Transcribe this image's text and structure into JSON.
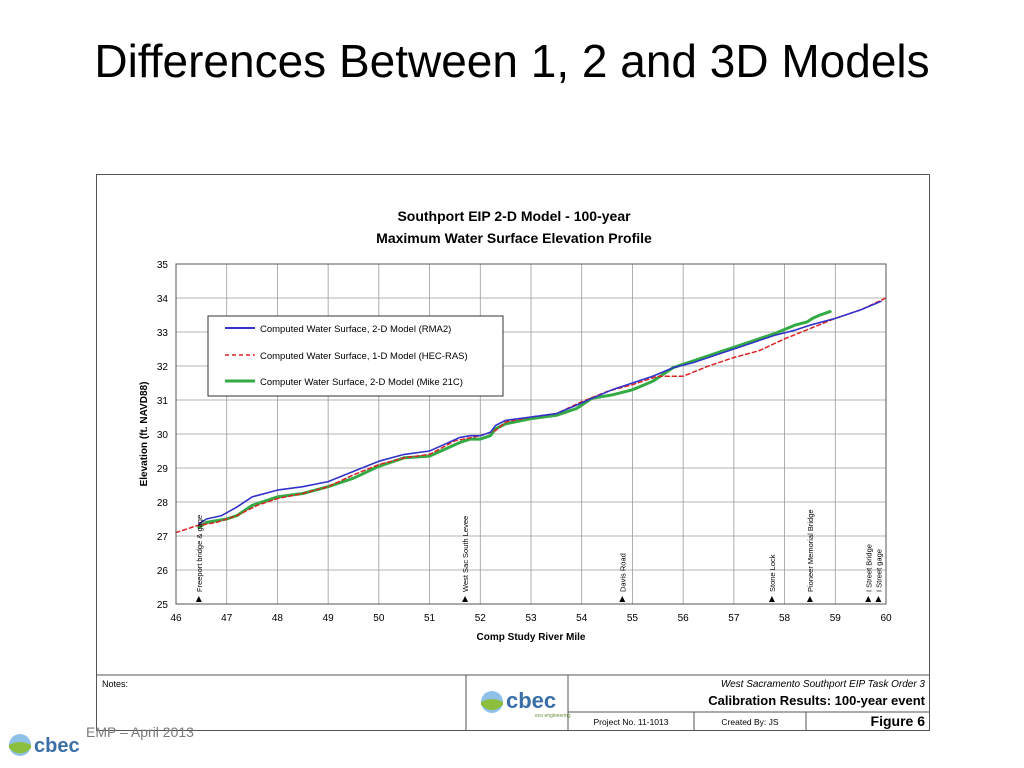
{
  "slide": {
    "title": "Differences Between 1, 2 and 3D Models",
    "footer_text": "EMP – April 2013",
    "logo_text": "cbec"
  },
  "chart_data": {
    "type": "line",
    "title": "Southport EIP 2-D Model - 100-year",
    "subtitle": "Maximum Water Surface Elevation Profile",
    "xlabel": "Comp Study River Mile",
    "ylabel": "Elevation (ft. NAVD88)",
    "xlim": [
      46,
      60
    ],
    "ylim": [
      25,
      35
    ],
    "xticks": [
      46,
      47,
      48,
      49,
      50,
      51,
      52,
      53,
      54,
      55,
      56,
      57,
      58,
      59,
      60
    ],
    "yticks": [
      25,
      26,
      27,
      28,
      29,
      30,
      31,
      32,
      33,
      34,
      35
    ],
    "grid": true,
    "legend_placement": "upper-left",
    "series": [
      {
        "name": "Computed Water Surface, 2-D Model (RMA2)",
        "color": "#3333cc",
        "style": "solid",
        "x": [
          46.45,
          46.6,
          46.9,
          47.2,
          47.5,
          48.0,
          48.5,
          49.0,
          49.5,
          50.0,
          50.5,
          51.0,
          51.3,
          51.6,
          51.8,
          52.0,
          52.2,
          52.3,
          52.5,
          53.0,
          53.5,
          53.9,
          54.2,
          54.6,
          55.0,
          55.4,
          55.8,
          56.2,
          56.6,
          57.0,
          57.4,
          57.8,
          58.2,
          58.5,
          59.0,
          59.5,
          59.9
        ],
        "y": [
          27.35,
          27.5,
          27.6,
          27.85,
          28.15,
          28.35,
          28.45,
          28.6,
          28.9,
          29.2,
          29.4,
          29.5,
          29.7,
          29.9,
          29.95,
          29.95,
          30.05,
          30.25,
          30.4,
          30.5,
          30.6,
          30.85,
          31.05,
          31.3,
          31.5,
          31.7,
          31.95,
          32.1,
          32.3,
          32.5,
          32.7,
          32.9,
          33.05,
          33.2,
          33.4,
          33.65,
          33.9
        ]
      },
      {
        "name": "Computed Water Surface, 1-D Model (HEC-RAS)",
        "color": "#dd2222",
        "style": "dashed",
        "x": [
          46.0,
          46.4,
          46.8,
          47.2,
          47.6,
          48.0,
          48.5,
          49.0,
          49.5,
          50.0,
          50.5,
          51.0,
          51.5,
          52.0,
          52.3,
          52.5,
          53.0,
          53.5,
          54.0,
          54.5,
          55.0,
          55.5,
          56.0,
          56.5,
          57.0,
          57.5,
          58.0,
          58.5,
          59.0,
          59.5,
          60.0
        ],
        "y": [
          27.1,
          27.3,
          27.4,
          27.6,
          27.9,
          28.1,
          28.25,
          28.45,
          28.8,
          29.1,
          29.3,
          29.4,
          29.8,
          29.95,
          30.1,
          30.35,
          30.5,
          30.6,
          30.95,
          31.25,
          31.45,
          31.7,
          31.7,
          32.0,
          32.25,
          32.45,
          32.8,
          33.1,
          33.4,
          33.65,
          34.0
        ]
      },
      {
        "name": "Computer Water Surface, 2-D Model (Mike 21C)",
        "color": "#33aa44",
        "style": "solid",
        "x": [
          46.45,
          46.6,
          47.0,
          47.2,
          47.5,
          48.0,
          48.5,
          49.0,
          49.5,
          50.0,
          50.5,
          51.0,
          51.3,
          51.6,
          51.8,
          52.0,
          52.2,
          52.3,
          52.5,
          53.0,
          53.5,
          53.9,
          54.2,
          54.6,
          55.0,
          55.4,
          55.8,
          56.2,
          56.6,
          57.0,
          57.4,
          57.8,
          58.2,
          58.45,
          58.55,
          58.7,
          58.9
        ],
        "y": [
          27.25,
          27.4,
          27.5,
          27.6,
          27.9,
          28.15,
          28.25,
          28.45,
          28.7,
          29.05,
          29.3,
          29.35,
          29.55,
          29.75,
          29.85,
          29.85,
          29.95,
          30.15,
          30.3,
          30.45,
          30.55,
          30.75,
          31.05,
          31.15,
          31.3,
          31.55,
          31.95,
          32.15,
          32.35,
          32.55,
          32.75,
          32.95,
          33.2,
          33.3,
          33.4,
          33.5,
          33.6
        ]
      }
    ],
    "markers": [
      {
        "x": 46.45,
        "label": "Freeport bridge & gage"
      },
      {
        "x": 51.7,
        "label": "West Sac South Levee"
      },
      {
        "x": 54.8,
        "label": "Davis Road"
      },
      {
        "x": 57.75,
        "label": "Stone Lock"
      },
      {
        "x": 58.5,
        "label": "Pioneer Memorial Bridge"
      },
      {
        "x": 59.65,
        "label": "I Street Bridge"
      },
      {
        "x": 59.85,
        "label": "I Street gage"
      }
    ]
  },
  "title_block": {
    "notes_label": "Notes:",
    "project_name": "West Sacramento Southport EIP Task Order 3",
    "sheet_title": "Calibration Results: 100-year event",
    "project_no": "Project No. 11-1013",
    "created_by": "Created By: JS",
    "figure_label": "Figure 6",
    "logo_text": "cbec",
    "logo_tagline": "eco engineering"
  }
}
